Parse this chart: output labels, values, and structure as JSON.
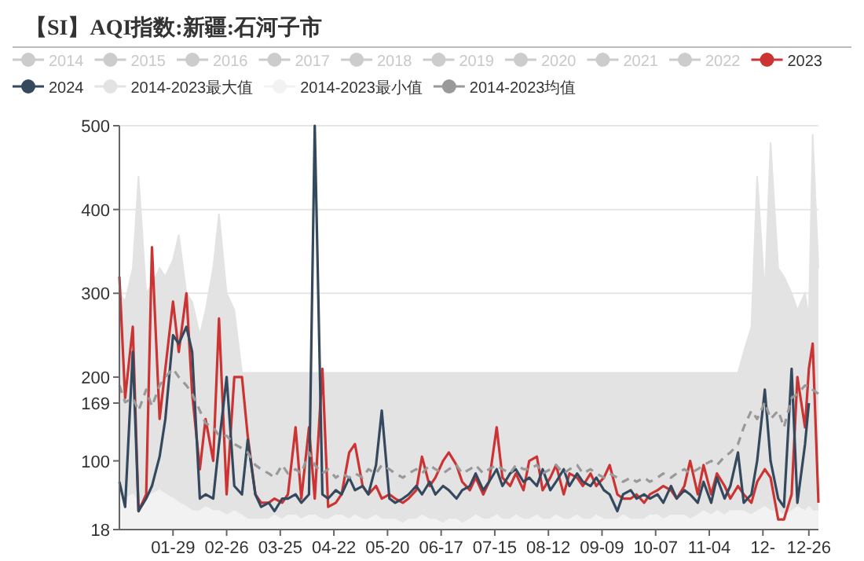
{
  "chart_data": {
    "type": "line",
    "title": "【SI】AQI指数:新疆:石河子市",
    "x": [
      "--01-01",
      "--01-04",
      "--01-08",
      "--01-11",
      "--01-15",
      "--01-18",
      "--01-22",
      "--01-25",
      "--01-29",
      "--02-01",
      "--02-05",
      "--02-08",
      "--02-12",
      "--02-15",
      "--02-19",
      "--02-22",
      "--02-26",
      "--03-01",
      "--03-05",
      "--03-08",
      "--03-12",
      "--03-15",
      "--03-19",
      "--03-22",
      "--03-26",
      "--03-29",
      "--04-02",
      "--04-05",
      "--04-09",
      "--04-12",
      "--04-16",
      "--04-19",
      "--04-23",
      "--04-26",
      "--04-30",
      "--05-03",
      "--05-07",
      "--05-10",
      "--05-14",
      "--05-17",
      "--05-21",
      "--05-24",
      "--05-28",
      "--05-31",
      "--06-04",
      "--06-07",
      "--06-11",
      "--06-14",
      "--06-18",
      "--06-21",
      "--06-25",
      "--06-28",
      "--07-02",
      "--07-05",
      "--07-09",
      "--07-12",
      "--07-16",
      "--07-19",
      "--07-23",
      "--07-26",
      "--07-30",
      "--08-02",
      "--08-06",
      "--08-09",
      "--08-13",
      "--08-16",
      "--08-20",
      "--08-23",
      "--08-27",
      "--08-30",
      "--09-03",
      "--09-06",
      "--09-10",
      "--09-13",
      "--09-17",
      "--09-20",
      "--09-24",
      "--09-27",
      "--10-01",
      "--10-04",
      "--10-08",
      "--10-11",
      "--10-15",
      "--10-18",
      "--10-22",
      "--10-25",
      "--10-29",
      "--11-01",
      "--11-05",
      "--11-08",
      "--11-12",
      "--11-15",
      "--11-19",
      "--11-22",
      "--11-26",
      "--11-29",
      "--12-03",
      "--12-06",
      "--12-10",
      "--12-13",
      "--12-17",
      "--12-20",
      "--12-24",
      "--12-26",
      "--12-28",
      "--12-31"
    ],
    "series": [
      {
        "name": "2014",
        "color": "#cccccc",
        "values": [
          null,
          null,
          null,
          null,
          null,
          null,
          null,
          null,
          null,
          null,
          null,
          null,
          null,
          null,
          null,
          null,
          null,
          null,
          null,
          null,
          null,
          null,
          null,
          null,
          null,
          null,
          null,
          null,
          null,
          null,
          null,
          null,
          null,
          null,
          null,
          null,
          null,
          null,
          null,
          null,
          null,
          null,
          null,
          null,
          null,
          null,
          null,
          null,
          null,
          null,
          null,
          null,
          null,
          null,
          null,
          null,
          null,
          null,
          null,
          null,
          null,
          null,
          null,
          null,
          null,
          null,
          null,
          null,
          null,
          null,
          null,
          null,
          null,
          null,
          null,
          null,
          null,
          null,
          null,
          null,
          null,
          null,
          null,
          null,
          null,
          null,
          null,
          null,
          null,
          null,
          null,
          null,
          null,
          null,
          null,
          null,
          null,
          null,
          null,
          null,
          null,
          null,
          null,
          null,
          null,
          null
        ]
      },
      {
        "name": "2015",
        "color": "#cccccc",
        "values": [
          null,
          null,
          null,
          null,
          null,
          null,
          null,
          null,
          null,
          null,
          null,
          null,
          null,
          null,
          null,
          null,
          null,
          null,
          null,
          null,
          null,
          null,
          null,
          null,
          null,
          null,
          null,
          null,
          null,
          null,
          null,
          null,
          null,
          null,
          null,
          null,
          null,
          null,
          null,
          null,
          null,
          null,
          null,
          null,
          null,
          null,
          null,
          null,
          null,
          null,
          null,
          null,
          null,
          null,
          null,
          null,
          null,
          null,
          null,
          null,
          null,
          null,
          null,
          null,
          null,
          null,
          null,
          null,
          null,
          null,
          null,
          null,
          null,
          null,
          null,
          null,
          null,
          null,
          null,
          null,
          null,
          null,
          null,
          null,
          null,
          null,
          null,
          null,
          null,
          null,
          null,
          null,
          null,
          null,
          null,
          null,
          null,
          null,
          null,
          null,
          null,
          null,
          null,
          null,
          null,
          null
        ]
      },
      {
        "name": "2016",
        "color": "#cccccc",
        "values": [
          null,
          null,
          null,
          null,
          null,
          null,
          null,
          null,
          null,
          null,
          null,
          null,
          null,
          null,
          null,
          null,
          null,
          null,
          null,
          null,
          null,
          null,
          null,
          null,
          null,
          null,
          null,
          null,
          null,
          null,
          null,
          null,
          null,
          null,
          null,
          null,
          null,
          null,
          null,
          null,
          null,
          null,
          null,
          null,
          null,
          null,
          null,
          null,
          null,
          null,
          null,
          null,
          null,
          null,
          null,
          null,
          null,
          null,
          null,
          null,
          null,
          null,
          null,
          null,
          null,
          null,
          null,
          null,
          null,
          null,
          null,
          null,
          null,
          null,
          null,
          null,
          null,
          null,
          null,
          null,
          null,
          null,
          null,
          null,
          null,
          null,
          null,
          null,
          null,
          null,
          null,
          null,
          null,
          null,
          null,
          null,
          null,
          null,
          null,
          null,
          null,
          null,
          null,
          null,
          null,
          null
        ]
      },
      {
        "name": "2017",
        "color": "#cccccc",
        "values": [
          null,
          null,
          null,
          null,
          null,
          null,
          null,
          null,
          null,
          null,
          null,
          null,
          null,
          null,
          null,
          null,
          null,
          null,
          null,
          null,
          null,
          null,
          null,
          null,
          null,
          null,
          null,
          null,
          null,
          null,
          null,
          null,
          null,
          null,
          null,
          null,
          null,
          null,
          null,
          null,
          null,
          null,
          null,
          null,
          null,
          null,
          null,
          null,
          null,
          null,
          null,
          null,
          null,
          null,
          null,
          null,
          null,
          null,
          null,
          null,
          null,
          null,
          null,
          null,
          null,
          null,
          null,
          null,
          null,
          null,
          null,
          null,
          null,
          null,
          null,
          null,
          null,
          null,
          null,
          null,
          null,
          null,
          null,
          null,
          null,
          null,
          null,
          null,
          null,
          null,
          null,
          null,
          null,
          null,
          null,
          null,
          null,
          null,
          null,
          null,
          null,
          null,
          null,
          null,
          null,
          null
        ]
      },
      {
        "name": "2018",
        "color": "#cccccc",
        "values": [
          null,
          null,
          null,
          null,
          null,
          null,
          null,
          null,
          null,
          null,
          null,
          null,
          null,
          null,
          null,
          null,
          null,
          null,
          null,
          null,
          null,
          null,
          null,
          null,
          null,
          null,
          null,
          null,
          null,
          null,
          null,
          null,
          null,
          null,
          null,
          null,
          null,
          null,
          null,
          null,
          null,
          null,
          null,
          null,
          null,
          null,
          null,
          null,
          null,
          null,
          null,
          null,
          null,
          null,
          null,
          null,
          null,
          null,
          null,
          null,
          null,
          null,
          null,
          null,
          null,
          null,
          null,
          null,
          null,
          null,
          null,
          null,
          null,
          null,
          null,
          null,
          null,
          null,
          null,
          null,
          null,
          null,
          null,
          null,
          null,
          null,
          null,
          null,
          null,
          null,
          null,
          null,
          null,
          null,
          null,
          null,
          null,
          null,
          null,
          null,
          null,
          null,
          null,
          null,
          null,
          null
        ]
      },
      {
        "name": "2019",
        "color": "#cccccc",
        "values": [
          null,
          null,
          null,
          null,
          null,
          null,
          null,
          null,
          null,
          null,
          null,
          null,
          null,
          null,
          null,
          null,
          null,
          null,
          null,
          null,
          null,
          null,
          null,
          null,
          null,
          null,
          null,
          null,
          null,
          null,
          null,
          null,
          null,
          null,
          null,
          null,
          null,
          null,
          null,
          null,
          null,
          null,
          null,
          null,
          null,
          null,
          null,
          null,
          null,
          null,
          null,
          null,
          null,
          null,
          null,
          null,
          null,
          null,
          null,
          null,
          null,
          null,
          null,
          null,
          null,
          null,
          null,
          null,
          null,
          null,
          null,
          null,
          null,
          null,
          null,
          null,
          null,
          null,
          null,
          null,
          null,
          null,
          null,
          null,
          null,
          null,
          null,
          null,
          null,
          null,
          null,
          null,
          null,
          null,
          null,
          null,
          null,
          null,
          null,
          null,
          null,
          null,
          null,
          null,
          null,
          null
        ]
      },
      {
        "name": "2020",
        "color": "#cccccc",
        "values": [
          null,
          null,
          null,
          null,
          null,
          null,
          null,
          null,
          null,
          null,
          null,
          null,
          null,
          null,
          null,
          null,
          null,
          null,
          null,
          null,
          null,
          null,
          null,
          null,
          null,
          null,
          null,
          null,
          null,
          null,
          null,
          null,
          null,
          null,
          null,
          null,
          null,
          null,
          null,
          null,
          null,
          null,
          null,
          null,
          null,
          null,
          null,
          null,
          null,
          null,
          null,
          null,
          null,
          null,
          null,
          null,
          null,
          null,
          null,
          null,
          null,
          null,
          null,
          null,
          null,
          null,
          null,
          null,
          null,
          null,
          null,
          null,
          null,
          null,
          null,
          null,
          null,
          null,
          null,
          null,
          null,
          null,
          null,
          null,
          null,
          null,
          null,
          null,
          null,
          null,
          null,
          null,
          null,
          null,
          null,
          null,
          null,
          null,
          null,
          null,
          null,
          null,
          null,
          null,
          null,
          null
        ]
      },
      {
        "name": "2021",
        "color": "#cccccc",
        "values": [
          null,
          null,
          null,
          null,
          null,
          null,
          null,
          null,
          null,
          null,
          null,
          null,
          null,
          null,
          null,
          null,
          null,
          null,
          null,
          null,
          null,
          null,
          null,
          null,
          null,
          null,
          null,
          null,
          null,
          null,
          null,
          null,
          null,
          null,
          null,
          null,
          null,
          null,
          null,
          null,
          null,
          null,
          null,
          null,
          null,
          null,
          null,
          null,
          null,
          null,
          null,
          null,
          null,
          null,
          null,
          null,
          null,
          null,
          null,
          null,
          null,
          null,
          null,
          null,
          null,
          null,
          null,
          null,
          null,
          null,
          null,
          null,
          null,
          null,
          null,
          null,
          null,
          null,
          null,
          null,
          null,
          null,
          null,
          null,
          null,
          null,
          null,
          null,
          null,
          null,
          null,
          null,
          null,
          null,
          null,
          null,
          null,
          null,
          null,
          null,
          null,
          null,
          null,
          null,
          null,
          null
        ]
      },
      {
        "name": "2022",
        "color": "#cccccc",
        "values": [
          null,
          null,
          null,
          null,
          null,
          null,
          null,
          null,
          null,
          null,
          null,
          null,
          null,
          null,
          null,
          null,
          null,
          null,
          null,
          null,
          null,
          null,
          null,
          null,
          null,
          null,
          null,
          null,
          null,
          null,
          null,
          null,
          null,
          null,
          null,
          null,
          null,
          null,
          null,
          null,
          null,
          null,
          null,
          null,
          null,
          null,
          null,
          null,
          null,
          null,
          null,
          null,
          null,
          null,
          null,
          null,
          null,
          null,
          null,
          null,
          null,
          null,
          null,
          null,
          null,
          null,
          null,
          null,
          null,
          null,
          null,
          null,
          null,
          null,
          null,
          null,
          null,
          null,
          null,
          null,
          null,
          null,
          null,
          null,
          null,
          null,
          null,
          null,
          null,
          null,
          null,
          null,
          null,
          null,
          null,
          null,
          null,
          null,
          null,
          null,
          null,
          null,
          null,
          null,
          null,
          null
        ]
      },
      {
        "name": "2023",
        "color": "#cc3333",
        "values": [
          320,
          175,
          260,
          40,
          60,
          355,
          150,
          210,
          290,
          230,
          300,
          180,
          90,
          150,
          100,
          270,
          60,
          200,
          200,
          130,
          60,
          50,
          50,
          55,
          50,
          60,
          140,
          55,
          140,
          55,
          210,
          45,
          50,
          60,
          110,
          120,
          70,
          60,
          70,
          55,
          60,
          55,
          50,
          55,
          65,
          105,
          70,
          80,
          100,
          110,
          95,
          75,
          65,
          80,
          60,
          75,
          140,
          80,
          70,
          85,
          65,
          100,
          105,
          65,
          80,
          95,
          60,
          85,
          80,
          70,
          85,
          70,
          80,
          95,
          60,
          55,
          55,
          60,
          50,
          60,
          65,
          70,
          65,
          55,
          70,
          100,
          60,
          95,
          60,
          85,
          70,
          55,
          70,
          60,
          50,
          75,
          90,
          80,
          30,
          30,
          60,
          200,
          140,
          210,
          240,
          50
        ]
      },
      {
        "name": "2024",
        "color": "#34495e",
        "values": [
          75,
          45,
          230,
          40,
          55,
          70,
          105,
          150,
          250,
          240,
          260,
          230,
          55,
          60,
          55,
          120,
          200,
          70,
          60,
          125,
          60,
          45,
          50,
          40,
          55,
          55,
          60,
          50,
          60,
          500,
          60,
          55,
          65,
          60,
          80,
          65,
          70,
          60,
          95,
          160,
          55,
          50,
          55,
          60,
          70,
          60,
          75,
          60,
          70,
          65,
          55,
          65,
          70,
          85,
          65,
          75,
          90,
          70,
          85,
          90,
          75,
          80,
          70,
          90,
          65,
          75,
          90,
          70,
          85,
          75,
          70,
          80,
          65,
          60,
          40,
          60,
          65,
          55,
          60,
          55,
          60,
          50,
          70,
          55,
          65,
          60,
          50,
          75,
          50,
          80,
          55,
          70,
          110,
          50,
          60,
          100,
          185,
          100,
          55,
          45,
          210,
          50,
          120,
          169,
          null,
          null
        ]
      },
      {
        "name": "2014-2023最大值",
        "type": "area",
        "color": "#e3e3e3",
        "values": [
          300,
          290,
          330,
          440,
          300,
          310,
          330,
          320,
          340,
          370,
          300,
          290,
          250,
          280,
          330,
          395,
          300,
          280,
          205,
          205,
          205,
          205,
          205,
          205,
          205,
          205,
          205,
          205,
          205,
          205,
          205,
          205,
          205,
          205,
          205,
          205,
          205,
          205,
          205,
          205,
          205,
          205,
          205,
          205,
          205,
          205,
          205,
          205,
          205,
          205,
          205,
          205,
          205,
          205,
          205,
          205,
          205,
          205,
          205,
          205,
          205,
          205,
          205,
          205,
          205,
          205,
          205,
          205,
          205,
          205,
          205,
          205,
          205,
          205,
          205,
          205,
          205,
          205,
          205,
          205,
          205,
          205,
          205,
          205,
          205,
          205,
          205,
          205,
          205,
          205,
          205,
          205,
          205,
          230,
          260,
          440,
          300,
          480,
          330,
          320,
          300,
          280,
          300,
          270,
          490,
          330
        ]
      },
      {
        "name": "2014-2023最小值",
        "type": "area",
        "color": "#f2f2f2",
        "values": [
          60,
          55,
          60,
          50,
          55,
          60,
          65,
          60,
          55,
          50,
          45,
          40,
          40,
          45,
          40,
          40,
          35,
          40,
          35,
          30,
          30,
          30,
          30,
          35,
          30,
          35,
          35,
          30,
          35,
          35,
          30,
          30,
          35,
          35,
          30,
          35,
          30,
          30,
          35,
          30,
          30,
          30,
          25,
          30,
          30,
          35,
          30,
          30,
          25,
          30,
          30,
          25,
          30,
          35,
          30,
          30,
          35,
          30,
          30,
          35,
          30,
          30,
          35,
          30,
          30,
          35,
          30,
          30,
          35,
          30,
          30,
          35,
          30,
          30,
          30,
          35,
          30,
          30,
          30,
          35,
          35,
          30,
          35,
          35,
          35,
          30,
          35,
          40,
          35,
          40,
          35,
          40,
          40,
          40,
          35,
          40,
          45,
          40,
          40,
          35,
          40,
          45,
          40,
          45,
          40,
          40
        ]
      },
      {
        "name": "2014-2023均值",
        "color": "#999999",
        "line_style": "dashed",
        "values": [
          190,
          170,
          175,
          160,
          185,
          165,
          190,
          200,
          210,
          200,
          190,
          180,
          160,
          145,
          140,
          130,
          130,
          120,
          115,
          110,
          95,
          90,
          85,
          80,
          95,
          85,
          90,
          85,
          110,
          95,
          85,
          90,
          80,
          85,
          80,
          85,
          80,
          90,
          85,
          95,
          90,
          85,
          80,
          85,
          90,
          85,
          95,
          90,
          85,
          90,
          95,
          85,
          90,
          95,
          85,
          90,
          95,
          90,
          85,
          95,
          90,
          90,
          95,
          85,
          90,
          95,
          85,
          90,
          95,
          85,
          90,
          85,
          80,
          85,
          80,
          75,
          80,
          75,
          80,
          75,
          80,
          85,
          80,
          85,
          90,
          85,
          90,
          95,
          100,
          95,
          105,
          110,
          120,
          140,
          160,
          150,
          170,
          150,
          160,
          140,
          175,
          180,
          190,
          190,
          185,
          180
        ]
      }
    ],
    "xlim": [
      "--01-01",
      "--12-31"
    ],
    "xticks": [
      {
        "value": "--01-29",
        "label": "01-29"
      },
      {
        "value": "--02-26",
        "label": "02-26"
      },
      {
        "value": "--03-25",
        "label": "03-25"
      },
      {
        "value": "--04-22",
        "label": "04-22"
      },
      {
        "value": "--05-20",
        "label": "05-20"
      },
      {
        "value": "--06-17",
        "label": "06-17"
      },
      {
        "value": "--07-15",
        "label": "07-15"
      },
      {
        "value": "--08-12",
        "label": "08-12"
      },
      {
        "value": "--09-09",
        "label": "09-09"
      },
      {
        "value": "--10-07",
        "label": "10-07"
      },
      {
        "value": "--11-04",
        "label": "11-04"
      },
      {
        "value": "--12-02",
        "label": "12-"
      },
      {
        "value": "--12-26",
        "label": "12-26"
      }
    ],
    "ylim": [
      18,
      500
    ],
    "yticks": [
      18,
      100,
      169,
      200,
      300,
      400,
      500
    ],
    "grid": "y",
    "legend": "top",
    "marker": "none"
  }
}
